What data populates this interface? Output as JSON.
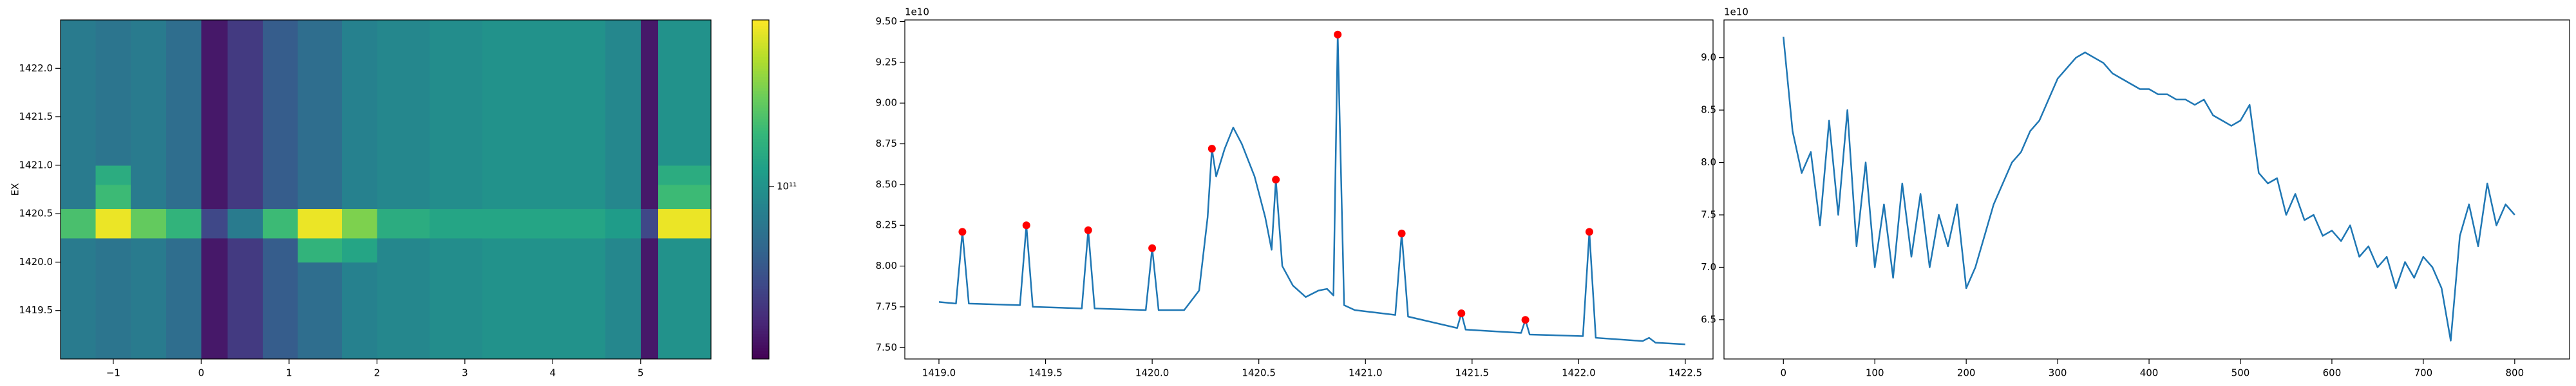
{
  "chart_data": [
    {
      "type": "heatmap",
      "ylabel": "EX",
      "colormap": "viridis",
      "cscale": "log",
      "xbins": [
        -1.6,
        -1.2,
        -0.8,
        -0.4,
        0,
        0.3,
        0.7,
        1.1,
        1.6,
        2.0,
        2.6,
        3.2,
        4.0,
        4.6,
        5.0,
        5.2,
        5.8
      ],
      "ybins": [
        1419.0,
        1419.5,
        1420.0,
        1420.25,
        1420.55,
        1420.8,
        1421.0,
        1421.5,
        1422.0,
        1422.5
      ],
      "z": [
        [
          80000000000.0,
          75000000000.0,
          80000000000.0,
          70000000000.0,
          35000000000.0,
          45000000000.0,
          60000000000.0,
          70000000000.0,
          85000000000.0,
          90000000000.0,
          95000000000.0,
          100000000000.0,
          100000000000.0,
          90000000000.0,
          35000000000.0,
          100000000000.0
        ],
        [
          80000000000.0,
          75000000000.0,
          80000000000.0,
          70000000000.0,
          35000000000.0,
          45000000000.0,
          60000000000.0,
          70000000000.0,
          85000000000.0,
          90000000000.0,
          95000000000.0,
          100000000000.0,
          100000000000.0,
          90000000000.0,
          35000000000.0,
          100000000000.0
        ],
        [
          80000000000.0,
          75000000000.0,
          80000000000.0,
          70000000000.0,
          35000000000.0,
          45000000000.0,
          60000000000.0,
          140000000000.0,
          120000000000.0,
          90000000000.0,
          95000000000.0,
          100000000000.0,
          100000000000.0,
          90000000000.0,
          35000000000.0,
          100000000000.0
        ],
        [
          160000000000.0,
          300000000000.0,
          180000000000.0,
          140000000000.0,
          50000000000.0,
          80000000000.0,
          150000000000.0,
          300000000000.0,
          200000000000.0,
          130000000000.0,
          120000000000.0,
          120000000000.0,
          120000000000.0,
          110000000000.0,
          50000000000.0,
          300000000000.0
        ],
        [
          80000000000.0,
          150000000000.0,
          80000000000.0,
          70000000000.0,
          35000000000.0,
          45000000000.0,
          60000000000.0,
          70000000000.0,
          85000000000.0,
          90000000000.0,
          95000000000.0,
          100000000000.0,
          100000000000.0,
          90000000000.0,
          35000000000.0,
          150000000000.0
        ],
        [
          80000000000.0,
          130000000000.0,
          80000000000.0,
          70000000000.0,
          35000000000.0,
          45000000000.0,
          60000000000.0,
          70000000000.0,
          85000000000.0,
          90000000000.0,
          95000000000.0,
          100000000000.0,
          100000000000.0,
          90000000000.0,
          35000000000.0,
          130000000000.0
        ],
        [
          80000000000.0,
          75000000000.0,
          80000000000.0,
          70000000000.0,
          35000000000.0,
          45000000000.0,
          60000000000.0,
          70000000000.0,
          85000000000.0,
          90000000000.0,
          95000000000.0,
          100000000000.0,
          100000000000.0,
          90000000000.0,
          35000000000.0,
          100000000000.0
        ],
        [
          80000000000.0,
          75000000000.0,
          80000000000.0,
          70000000000.0,
          35000000000.0,
          45000000000.0,
          60000000000.0,
          70000000000.0,
          85000000000.0,
          90000000000.0,
          95000000000.0,
          100000000000.0,
          100000000000.0,
          90000000000.0,
          35000000000.0,
          100000000000.0
        ],
        [
          80000000000.0,
          75000000000.0,
          80000000000.0,
          70000000000.0,
          35000000000.0,
          45000000000.0,
          60000000000.0,
          70000000000.0,
          85000000000.0,
          90000000000.0,
          95000000000.0,
          100000000000.0,
          100000000000.0,
          90000000000.0,
          35000000000.0,
          100000000000.0
        ]
      ],
      "xlim": [
        -1.6,
        5.8
      ],
      "ylim": [
        1419.0,
        1422.5
      ],
      "xticks": [
        {
          "value": -1,
          "label": "−1"
        },
        0,
        1,
        2,
        3,
        4,
        5
      ],
      "yticks": [
        1419.5,
        {
          "value": 1420,
          "label": "1420.0"
        },
        1420.5,
        {
          "value": 1421,
          "label": "1421.0"
        },
        1421.5,
        {
          "value": 1422,
          "label": "1422.0"
        }
      ],
      "clim": [
        30000000000.0,
        320000000000.0
      ],
      "cticks": [
        {
          "value": 100000000000.0,
          "label": "10¹¹"
        }
      ]
    },
    {
      "type": "line",
      "offset_text": "1e10",
      "x": [
        1419.0,
        1419.08,
        1419.11,
        1419.14,
        1419.38,
        1419.41,
        1419.44,
        1419.67,
        1419.7,
        1419.73,
        1419.97,
        1420.0,
        1420.03,
        1420.15,
        1420.22,
        1420.26,
        1420.28,
        1420.3,
        1420.34,
        1420.38,
        1420.42,
        1420.48,
        1420.53,
        1420.56,
        1420.58,
        1420.61,
        1420.66,
        1420.72,
        1420.78,
        1420.82,
        1420.85,
        1420.87,
        1420.9,
        1420.95,
        1421.14,
        1421.17,
        1421.2,
        1421.43,
        1421.45,
        1421.47,
        1421.73,
        1421.75,
        1421.77,
        1422.02,
        1422.05,
        1422.08,
        1422.3,
        1422.33,
        1422.36,
        1422.5
      ],
      "series": [
        {
          "color": "#1f77b4",
          "values": [
            7.78,
            7.77,
            8.21,
            7.77,
            7.76,
            8.25,
            7.75,
            7.74,
            8.22,
            7.74,
            7.73,
            8.11,
            7.73,
            7.73,
            7.85,
            8.3,
            8.72,
            8.55,
            8.72,
            8.85,
            8.75,
            8.55,
            8.3,
            8.1,
            8.53,
            8.0,
            7.88,
            7.81,
            7.85,
            7.86,
            7.82,
            9.42,
            7.76,
            7.73,
            7.7,
            8.2,
            7.69,
            7.62,
            7.71,
            7.61,
            7.59,
            7.67,
            7.58,
            7.57,
            8.21,
            7.56,
            7.54,
            7.56,
            7.53,
            7.52
          ]
        },
        {
          "color": "#ff0000",
          "marker": "o",
          "x": [
            1419.11,
            1419.41,
            1419.7,
            1420.0,
            1420.28,
            1420.58,
            1420.87,
            1421.17,
            1421.45,
            1421.75,
            1422.05
          ],
          "values": [
            8.21,
            8.25,
            8.22,
            8.11,
            8.72,
            8.53,
            9.42,
            8.2,
            7.71,
            7.67,
            8.21
          ]
        }
      ],
      "xlim": [
        1418.84,
        1422.63
      ],
      "ylim": [
        7.43,
        9.51
      ],
      "xticks": [
        {
          "value": 1419,
          "label": "1419.0"
        },
        1419.5,
        {
          "value": 1420,
          "label": "1420.0"
        },
        1420.5,
        {
          "value": 1421,
          "label": "1421.0"
        },
        1421.5,
        {
          "value": 1422,
          "label": "1422.0"
        },
        1422.5
      ],
      "yticks": [
        {
          "value": 7.5,
          "label": "7.50"
        },
        7.75,
        {
          "value": 8,
          "label": "8.00"
        },
        8.25,
        {
          "value": 8.5,
          "label": "8.50"
        },
        8.75,
        {
          "value": 9,
          "label": "9.00"
        },
        9.25,
        {
          "value": 9.5,
          "label": "9.50"
        }
      ]
    },
    {
      "type": "line",
      "offset_text": "1e10",
      "x": [
        0,
        10,
        20,
        30,
        40,
        50,
        60,
        70,
        80,
        90,
        100,
        110,
        120,
        130,
        140,
        150,
        160,
        170,
        180,
        190,
        200,
        210,
        220,
        230,
        240,
        250,
        260,
        270,
        280,
        290,
        300,
        310,
        320,
        330,
        340,
        350,
        360,
        370,
        380,
        390,
        400,
        410,
        420,
        430,
        440,
        450,
        460,
        470,
        480,
        490,
        500,
        510,
        520,
        530,
        540,
        550,
        560,
        570,
        580,
        590,
        600,
        610,
        620,
        630,
        640,
        650,
        660,
        670,
        680,
        690,
        700,
        710,
        720,
        730,
        740,
        750,
        760,
        770,
        780,
        790,
        800
      ],
      "series": [
        {
          "color": "#1f77b4",
          "values": [
            9.2,
            8.3,
            7.9,
            8.1,
            7.4,
            8.4,
            7.5,
            8.5,
            7.2,
            8.0,
            7.0,
            7.6,
            6.9,
            7.8,
            7.1,
            7.7,
            7.0,
            7.5,
            7.2,
            7.6,
            6.8,
            7.0,
            7.3,
            7.6,
            7.8,
            8.0,
            8.1,
            8.3,
            8.4,
            8.6,
            8.8,
            8.9,
            9.0,
            9.05,
            9.0,
            8.95,
            8.85,
            8.8,
            8.75,
            8.7,
            8.7,
            8.65,
            8.65,
            8.6,
            8.6,
            8.55,
            8.6,
            8.45,
            8.4,
            8.35,
            8.4,
            8.55,
            7.9,
            7.8,
            7.85,
            7.5,
            7.7,
            7.45,
            7.5,
            7.3,
            7.35,
            7.25,
            7.4,
            7.1,
            7.2,
            7.0,
            7.1,
            6.8,
            7.05,
            6.9,
            7.1,
            7.0,
            6.8,
            6.3,
            7.3,
            7.6,
            7.2,
            7.8,
            7.4,
            7.6,
            7.5
          ]
        }
      ],
      "xlim": [
        -65,
        860
      ],
      "ylim": [
        6.125,
        9.36
      ],
      "xticks": [
        0,
        100,
        200,
        300,
        400,
        500,
        600,
        700,
        800
      ],
      "yticks": [
        6.5,
        {
          "value": 7,
          "label": "7.0"
        },
        7.5,
        {
          "value": 8,
          "label": "8.0"
        },
        8.5,
        {
          "value": 9,
          "label": "9.0"
        }
      ]
    }
  ]
}
